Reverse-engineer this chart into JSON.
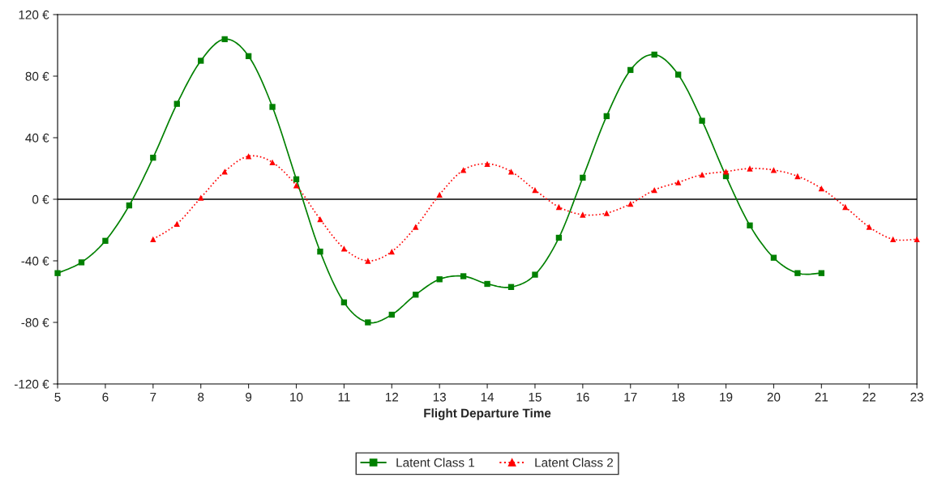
{
  "chart_data": {
    "type": "line",
    "xlabel": "Flight Departure Time",
    "xlim": [
      5,
      23
    ],
    "xticks": [
      5,
      6,
      7,
      8,
      9,
      10,
      11,
      12,
      13,
      14,
      15,
      16,
      17,
      18,
      19,
      20,
      21,
      22,
      23
    ],
    "ylim": [
      -120,
      120
    ],
    "yticks": [
      {
        "value": -120,
        "label": "-120 €"
      },
      {
        "value": -80,
        "label": "-80 €"
      },
      {
        "value": -40,
        "label": "-40 €"
      },
      {
        "value": 0,
        "label": "0 €"
      },
      {
        "value": 40,
        "label": "40 €"
      },
      {
        "value": 80,
        "label": "80 €"
      },
      {
        "value": 120,
        "label": "120 €"
      }
    ],
    "grid": false,
    "legend": "bottom",
    "ref_lines": [
      {
        "axis": "y",
        "value": 0,
        "color": "#000000"
      }
    ],
    "series": [
      {
        "name": "Latent Class 1",
        "color": "#008000",
        "marker": "square",
        "line_style": "solid",
        "x": [
          5,
          5.5,
          6,
          6.5,
          7,
          7.5,
          8,
          8.5,
          9,
          9.5,
          10,
          10.5,
          11,
          11.5,
          12,
          12.5,
          13,
          13.5,
          14,
          14.5,
          15,
          15.5,
          16,
          16.5,
          17,
          17.5,
          18,
          18.5,
          19,
          19.5,
          20,
          20.5,
          21
        ],
        "values": [
          -48,
          -41,
          -27,
          -4,
          27,
          62,
          90,
          104,
          93,
          60,
          13,
          -34,
          -67,
          -80,
          -75,
          -62,
          -52,
          -50,
          -55,
          -57,
          -49,
          -25,
          14,
          54,
          84,
          94,
          81,
          51,
          15,
          -17,
          -38,
          -48,
          -48
        ]
      },
      {
        "name": "Latent Class 2",
        "color": "#ff0000",
        "marker": "triangle",
        "line_style": "dotted",
        "x": [
          7,
          7.5,
          8,
          8.5,
          9,
          9.5,
          10,
          10.5,
          11,
          11.5,
          12,
          12.5,
          13,
          13.5,
          14,
          14.5,
          15,
          15.5,
          16,
          16.5,
          17,
          17.5,
          18,
          18.5,
          19,
          19.5,
          20,
          20.5,
          21,
          21.5,
          22,
          22.5,
          23
        ],
        "values": [
          -26,
          -16,
          1,
          18,
          28,
          24,
          9,
          -13,
          -32,
          -40,
          -34,
          -18,
          3,
          19,
          23,
          18,
          6,
          -5,
          -10,
          -9,
          -3,
          6,
          11,
          16,
          18,
          20,
          19,
          15,
          7,
          -5,
          -18,
          -26,
          -26
        ]
      }
    ]
  }
}
